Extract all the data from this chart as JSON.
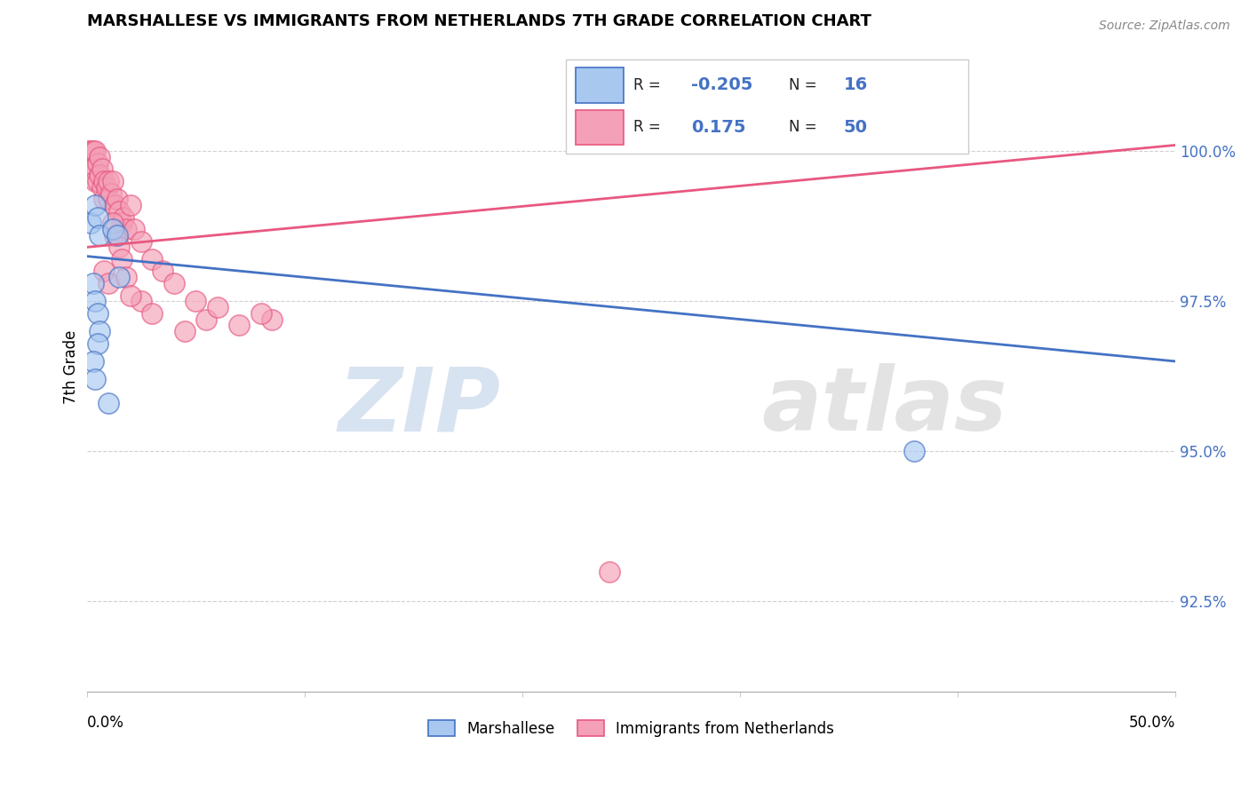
{
  "title": "MARSHALLESE VS IMMIGRANTS FROM NETHERLANDS 7TH GRADE CORRELATION CHART",
  "source": "Source: ZipAtlas.com",
  "ylabel": "7th Grade",
  "xlim": [
    0.0,
    50.0
  ],
  "ylim": [
    91.0,
    101.8
  ],
  "yticks": [
    92.5,
    95.0,
    97.5,
    100.0
  ],
  "ytick_labels": [
    "92.5%",
    "95.0%",
    "97.5%",
    "100.0%"
  ],
  "blue_R": "-0.205",
  "blue_N": "16",
  "pink_R": "0.175",
  "pink_N": "50",
  "blue_color": "#A8C8F0",
  "pink_color": "#F4A0B8",
  "blue_line_color": "#4472C4",
  "pink_line_color": "#E85880",
  "watermark_zip": "ZIP",
  "watermark_atlas": "atlas",
  "blue_line_x0": 0.0,
  "blue_line_y0": 98.25,
  "blue_line_x1": 50.0,
  "blue_line_y1": 96.5,
  "pink_line_x0": 0.0,
  "pink_line_y0": 98.4,
  "pink_line_x1": 50.0,
  "pink_line_y1": 100.1,
  "blue_scatter_x": [
    0.2,
    0.4,
    0.5,
    0.6,
    1.2,
    1.4,
    1.5,
    0.3,
    0.4,
    0.5,
    0.6,
    0.5,
    0.3,
    0.4,
    1.0,
    38.0
  ],
  "blue_scatter_y": [
    98.8,
    99.1,
    98.9,
    98.6,
    98.7,
    98.6,
    97.9,
    97.8,
    97.5,
    97.3,
    97.0,
    96.8,
    96.5,
    96.2,
    95.8,
    95.0
  ],
  "pink_scatter_x": [
    0.1,
    0.2,
    0.2,
    0.3,
    0.3,
    0.4,
    0.4,
    0.5,
    0.5,
    0.6,
    0.6,
    0.7,
    0.7,
    0.8,
    0.8,
    0.9,
    1.0,
    1.0,
    1.1,
    1.2,
    1.3,
    1.4,
    1.5,
    1.6,
    1.7,
    1.8,
    2.0,
    2.2,
    2.5,
    3.0,
    3.5,
    4.0,
    5.0,
    5.5,
    6.0,
    7.0,
    8.5,
    1.3,
    1.5,
    1.6,
    0.8,
    1.0,
    2.5,
    3.0,
    4.5,
    1.8,
    2.0,
    1.2,
    8.0,
    24.0
  ],
  "pink_scatter_y": [
    100.0,
    100.0,
    99.8,
    100.0,
    99.7,
    100.0,
    99.5,
    99.8,
    99.5,
    99.9,
    99.6,
    99.7,
    99.4,
    99.5,
    99.2,
    99.4,
    99.5,
    99.2,
    99.3,
    99.5,
    99.1,
    99.2,
    99.0,
    98.8,
    98.9,
    98.7,
    99.1,
    98.7,
    98.5,
    98.2,
    98.0,
    97.8,
    97.5,
    97.2,
    97.4,
    97.1,
    97.2,
    98.6,
    98.4,
    98.2,
    98.0,
    97.8,
    97.5,
    97.3,
    97.0,
    97.9,
    97.6,
    98.8,
    97.3,
    93.0
  ]
}
